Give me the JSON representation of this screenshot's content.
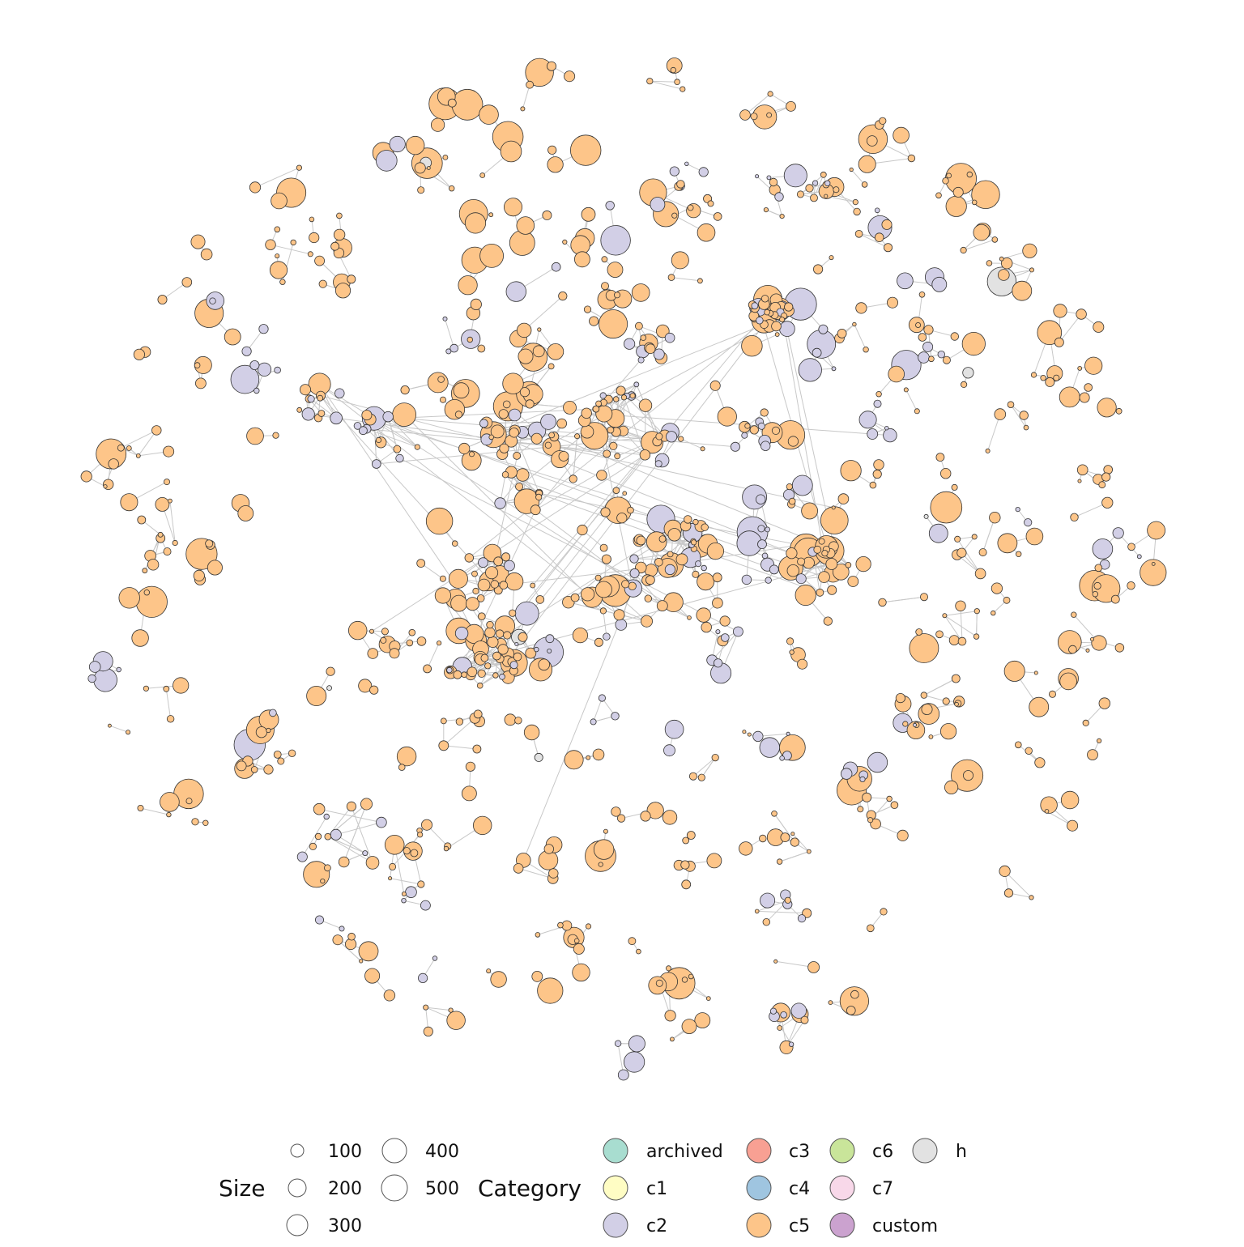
{
  "chart_data": {
    "type": "network",
    "grid": false,
    "legend_placement": "bottom",
    "size_legend": {
      "title": "Size",
      "entries": [
        {
          "label": "100",
          "value": 100
        },
        {
          "label": "200",
          "value": 200
        },
        {
          "label": "300",
          "value": 300
        },
        {
          "label": "400",
          "value": 400
        },
        {
          "label": "500",
          "value": 500
        }
      ]
    },
    "category_legend": {
      "title": "Category",
      "entries": [
        {
          "label": "archived",
          "color": "#a8ddd0"
        },
        {
          "label": "c1",
          "color": "#fffdc4"
        },
        {
          "label": "c2",
          "color": "#d2cfe6"
        },
        {
          "label": "c3",
          "color": "#f8a093"
        },
        {
          "label": "c4",
          "color": "#9fc5e0"
        },
        {
          "label": "c5",
          "color": "#fdc589"
        },
        {
          "label": "c6",
          "color": "#c9e59a"
        },
        {
          "label": "c7",
          "color": "#f8d8e9"
        },
        {
          "label": "custom",
          "color": "#cba2cf"
        },
        {
          "label": "h",
          "color": "#e2e2e2"
        }
      ]
    },
    "node_style": {
      "stroke": "#333333",
      "edge_color": "#c8c8c8"
    }
  }
}
